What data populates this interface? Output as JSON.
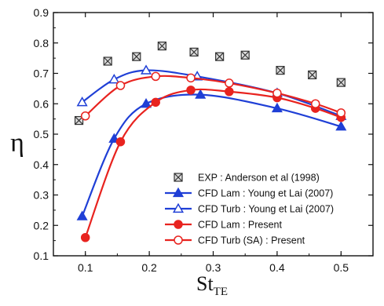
{
  "chart_data": {
    "type": "scatter",
    "title": "",
    "xlabel_main": "St",
    "xlabel_sub": "TE",
    "ylabel": "η",
    "xlim": [
      0.05,
      0.55
    ],
    "ylim": [
      0.1,
      0.9
    ],
    "x_ticks": [
      "0.1",
      "0.2",
      "0.3",
      "0.4",
      "0.5"
    ],
    "y_ticks": [
      "0.1",
      "0.2",
      "0.3",
      "0.4",
      "0.5",
      "0.6",
      "0.7",
      "0.8",
      "0.9"
    ],
    "grid": false,
    "legend_placement": "bottom-right",
    "series": [
      {
        "name": "EXP : Anderson et al (1998)",
        "marker": "boxed-x",
        "color": "#333333",
        "line": false,
        "x": [
          0.09,
          0.135,
          0.18,
          0.22,
          0.27,
          0.31,
          0.35,
          0.405,
          0.455,
          0.5
        ],
        "y": [
          0.545,
          0.74,
          0.755,
          0.79,
          0.77,
          0.755,
          0.76,
          0.71,
          0.695,
          0.67
        ]
      },
      {
        "name": "CFD Lam : Young et Lai (2007)",
        "marker": "triangle-filled",
        "color": "#1f3fd6",
        "line": true,
        "x": [
          0.095,
          0.145,
          0.195,
          0.28,
          0.4,
          0.5
        ],
        "y": [
          0.23,
          0.485,
          0.6,
          0.63,
          0.585,
          0.525
        ]
      },
      {
        "name": "CFD Turb : Young et Lai (2007)",
        "marker": "triangle-open",
        "color": "#1f3fd6",
        "line": true,
        "x": [
          0.095,
          0.145,
          0.195,
          0.275,
          0.4,
          0.5
        ],
        "y": [
          0.605,
          0.68,
          0.71,
          0.69,
          0.635,
          0.56
        ]
      },
      {
        "name": "CFD Lam : Present",
        "marker": "circle-filled",
        "color": "#e8231f",
        "line": true,
        "x": [
          0.1,
          0.155,
          0.21,
          0.265,
          0.325,
          0.4,
          0.46,
          0.5
        ],
        "y": [
          0.16,
          0.475,
          0.605,
          0.645,
          0.64,
          0.62,
          0.585,
          0.555
        ]
      },
      {
        "name": "CFD Turb (SA) : Present",
        "marker": "circle-open",
        "color": "#e8231f",
        "line": true,
        "x": [
          0.1,
          0.155,
          0.21,
          0.265,
          0.325,
          0.4,
          0.46,
          0.5
        ],
        "y": [
          0.56,
          0.66,
          0.69,
          0.685,
          0.668,
          0.635,
          0.6,
          0.57
        ]
      }
    ]
  }
}
